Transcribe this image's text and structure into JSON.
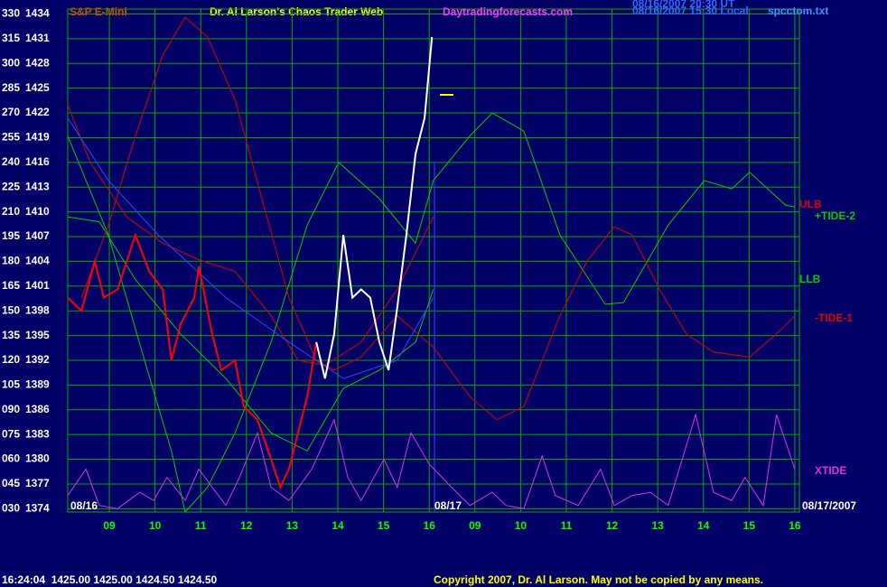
{
  "chart_data": {
    "type": "line",
    "title": "S&P E-Mini",
    "subtitle": "Dr. Al Larson's Chaos Trader Web",
    "annotations": [
      "Daytradingforecasts.com",
      "08/16/2007 20:30 UT",
      "08/16/2007 15:30 Local",
      "spcctom.txt",
      "08/16",
      "08/17",
      "08/17/2007",
      "16:24:04  1425.00 1425.00 1424.50 1424.50",
      "Copyright 2007, Dr. Al Larson. May not be copied by any means."
    ],
    "grid": true,
    "xlim": [
      0.09,
      16.1
    ],
    "xticks": [
      {
        "value": 1,
        "label": "09"
      },
      {
        "value": 2,
        "label": "10"
      },
      {
        "value": 3,
        "label": "11"
      },
      {
        "value": 4,
        "label": "12"
      },
      {
        "value": 5,
        "label": "13"
      },
      {
        "value": 6,
        "label": "14"
      },
      {
        "value": 7,
        "label": "15"
      },
      {
        "value": 8,
        "label": "16"
      },
      {
        "value": 9,
        "label": "09"
      },
      {
        "value": 10,
        "label": "10"
      },
      {
        "value": 11,
        "label": "11"
      },
      {
        "value": 12,
        "label": "12"
      },
      {
        "value": 13,
        "label": "13"
      },
      {
        "value": 14,
        "label": "14"
      },
      {
        "value": 15,
        "label": "15"
      },
      {
        "value": 16,
        "label": "16"
      }
    ],
    "ylim": [
      28,
      333
    ],
    "yticks": [
      330,
      315,
      300,
      285,
      270,
      255,
      240,
      225,
      210,
      195,
      180,
      165,
      150,
      135,
      120,
      105,
      {
        "value": 90,
        "label": "090"
      },
      {
        "value": 75,
        "label": "075"
      },
      {
        "value": 60,
        "label": "060"
      },
      {
        "value": 45,
        "label": "045"
      },
      {
        "value": 30,
        "label": "030"
      }
    ],
    "y2lim": [
      1373.6,
      1434.6
    ],
    "y2ticks": [
      1434,
      1431,
      1428,
      1425,
      1422,
      1419,
      1416,
      1413,
      1410,
      1407,
      1404,
      1401,
      1398,
      1395,
      1392,
      1389,
      1386,
      1383,
      1380,
      1377,
      1374
    ],
    "series": [
      {
        "name": "ULB",
        "color": "#dd0000",
        "x": [
          0.09,
          0.58,
          1.38,
          2.17,
          2.96,
          3.75,
          4.54,
          5.13,
          5.72,
          6.51,
          7.3,
          8.09
        ],
        "values": [
          275,
          240,
          207,
          191,
          181,
          174,
          147,
          120,
          117,
          131,
          163,
          207
        ]
      },
      {
        "name": "+TIDE-2",
        "color": "#00cc00",
        "x": [
          0.09,
          0.98,
          1.77,
          2.36,
          2.66,
          3.15,
          3.75,
          4.54,
          5.33,
          6.02,
          6.91,
          7.7,
          8.09,
          8.89,
          9.38,
          10.07,
          10.86,
          11.85,
          12.25,
          13.23,
          14.02,
          14.62,
          15.01,
          15.8,
          16.0
        ],
        "values": [
          256,
          196,
          120,
          65,
          28,
          43,
          76,
          131,
          202,
          240,
          218,
          191,
          229,
          256,
          270,
          259,
          196,
          154,
          155,
          202,
          229,
          224,
          234,
          214,
          213
        ]
      },
      {
        "name": "LLB",
        "color": "#00cc00",
        "x": [
          0.09,
          0.78,
          1.57,
          2.56,
          3.55,
          4.54,
          5.33,
          6.12,
          6.91,
          7.7,
          8.09
        ],
        "values": [
          207,
          204,
          169,
          136,
          109,
          76,
          65,
          103,
          114,
          131,
          163
        ]
      },
      {
        "name": "-TIDE-1",
        "color": "#dd0000",
        "x": [
          0.39,
          0.98,
          1.57,
          2.17,
          2.66,
          3.15,
          3.75,
          4.34,
          4.93,
          5.53,
          5.92,
          6.51,
          7.3,
          8.09,
          8.89,
          9.48,
          10.07,
          10.86,
          11.45,
          12.05,
          12.44,
          13.04,
          13.63,
          14.22,
          15.01,
          15.6,
          16.0
        ],
        "values": [
          158,
          202,
          256,
          305,
          328,
          316,
          278,
          218,
          158,
          120,
          114,
          122,
          147,
          128,
          98,
          84,
          92,
          147,
          180,
          201,
          196,
          163,
          136,
          125,
          122,
          136,
          147
        ]
      },
      {
        "name": "XTIDE",
        "color": "#dd33dd",
        "x": [
          0.09,
          0.49,
          0.78,
          1.18,
          1.67,
          1.97,
          2.26,
          2.66,
          2.96,
          3.25,
          3.55,
          3.85,
          4.24,
          4.54,
          4.93,
          5.43,
          5.92,
          6.22,
          6.51,
          7.01,
          7.3,
          7.6,
          8.0,
          8.49,
          8.89,
          9.38,
          9.68,
          10.07,
          10.47,
          10.76,
          11.26,
          11.75,
          12.05,
          12.44,
          12.84,
          13.23,
          13.83,
          14.22,
          14.62,
          14.91,
          15.31,
          15.6,
          16.0
        ],
        "values": [
          38,
          54,
          32,
          30,
          40,
          35,
          49,
          35,
          54,
          43,
          32,
          49,
          76,
          43,
          35,
          54,
          84,
          49,
          35,
          60,
          43,
          76,
          57,
          43,
          32,
          40,
          32,
          30,
          62,
          38,
          32,
          54,
          32,
          38,
          40,
          32,
          87,
          40,
          35,
          49,
          32,
          87,
          54
        ]
      },
      {
        "color": "#3344ff",
        "x": [
          0.09,
          0.98,
          2.07,
          3.55,
          4.93,
          6.12,
          7.3,
          8.09
        ],
        "values": [
          267,
          229,
          196,
          158,
          131,
          109,
          120,
          158
        ]
      },
      {
        "color": "#ff0000",
        "x": [
          0.09,
          0.39,
          0.68,
          0.88,
          1.18,
          1.57,
          1.87,
          2.17,
          2.36,
          2.56,
          2.86,
          2.96,
          3.25,
          3.45,
          3.75,
          3.94,
          4.24,
          4.54,
          4.74,
          4.93,
          5.13,
          5.33,
          5.53
        ],
        "values": [
          158,
          150,
          180,
          158,
          163,
          196,
          174,
          163,
          120,
          142,
          158,
          177,
          136,
          114,
          120,
          92,
          84,
          60,
          43,
          54,
          76,
          98,
          131
        ]
      },
      {
        "color": "#ffffff",
        "x": [
          5.53,
          5.72,
          5.92,
          6.12,
          6.32,
          6.51,
          6.71,
          6.91,
          7.11,
          7.3,
          7.5,
          7.7,
          7.9,
          8.06
        ],
        "values": [
          131,
          109,
          136,
          196,
          158,
          163,
          158,
          131,
          114,
          152,
          196,
          245,
          267,
          316
        ]
      }
    ]
  }
}
